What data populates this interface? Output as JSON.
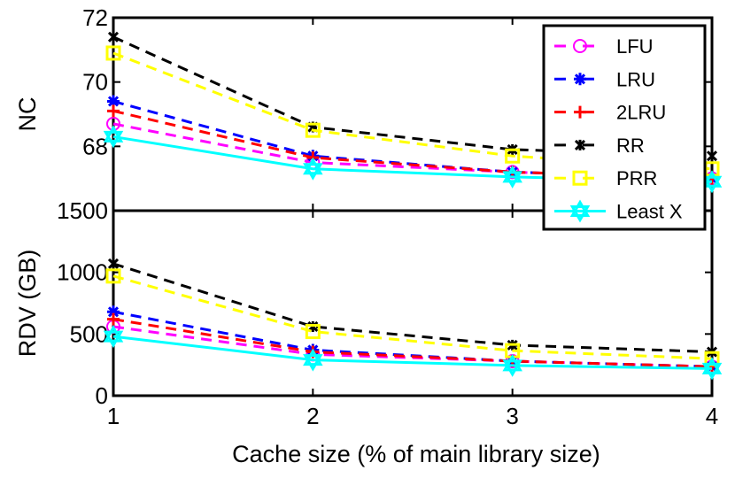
{
  "chart_data": [
    {
      "type": "line",
      "ylabel": "NC",
      "xlabel": "",
      "x": [
        1,
        2,
        3,
        4
      ],
      "ylim": [
        66,
        72
      ],
      "yticks": [
        68,
        70,
        72
      ],
      "series": [
        {
          "name": "LFU",
          "color": "#ff00ff",
          "marker": "circle",
          "dashed": true,
          "values": [
            68.7,
            67.5,
            67.2,
            67.0
          ]
        },
        {
          "name": "LRU",
          "color": "#0000ff",
          "marker": "asterisk",
          "dashed": true,
          "values": [
            69.4,
            67.7,
            67.2,
            67.0
          ]
        },
        {
          "name": "2LRU",
          "color": "#ff0000",
          "marker": "plus",
          "dashed": true,
          "values": [
            69.1,
            67.65,
            67.2,
            67.0
          ]
        },
        {
          "name": "RR",
          "color": "#000000",
          "marker": "x",
          "dashed": true,
          "values": [
            71.4,
            68.6,
            67.9,
            67.7
          ]
        },
        {
          "name": "PRR",
          "color": "#ffff00",
          "marker": "square",
          "dashed": true,
          "values": [
            70.9,
            68.5,
            67.7,
            67.3
          ]
        },
        {
          "name": "Least X",
          "color": "#00ffff",
          "marker": "hexagram",
          "dashed": false,
          "values": [
            68.3,
            67.3,
            67.05,
            66.9
          ]
        }
      ]
    },
    {
      "type": "line",
      "ylabel": "RDV (GB)",
      "xlabel": "Cache size (% of main library size)",
      "x": [
        1,
        2,
        3,
        4
      ],
      "xticks": [
        "1",
        "2",
        "3",
        "4"
      ],
      "ylim": [
        0,
        1500
      ],
      "yticks": [
        0,
        500,
        1000,
        1500
      ],
      "series": [
        {
          "name": "LFU",
          "color": "#ff00ff",
          "marker": "circle",
          "dashed": true,
          "values": [
            560,
            335,
            280,
            235
          ]
        },
        {
          "name": "LRU",
          "color": "#0000ff",
          "marker": "asterisk",
          "dashed": true,
          "values": [
            680,
            370,
            280,
            235
          ]
        },
        {
          "name": "2LRU",
          "color": "#ff0000",
          "marker": "plus",
          "dashed": true,
          "values": [
            620,
            355,
            280,
            235
          ]
        },
        {
          "name": "RR",
          "color": "#000000",
          "marker": "x",
          "dashed": true,
          "values": [
            1070,
            560,
            410,
            355
          ]
        },
        {
          "name": "PRR",
          "color": "#ffff00",
          "marker": "square",
          "dashed": true,
          "values": [
            970,
            520,
            365,
            300
          ]
        },
        {
          "name": "Least X",
          "color": "#00ffff",
          "marker": "hexagram",
          "dashed": false,
          "values": [
            480,
            290,
            245,
            220
          ]
        }
      ]
    }
  ],
  "legend": {
    "placement": "top-right",
    "entries": [
      "LFU",
      "LRU",
      "2LRU",
      "RR",
      "PRR",
      "Least X"
    ]
  }
}
